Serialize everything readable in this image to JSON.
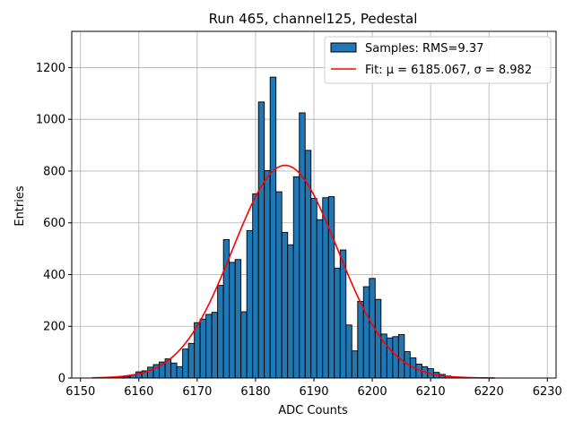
{
  "chart_data": {
    "type": "bar",
    "title": "Run 465, channel125, Pedestal",
    "xlabel": "ADC Counts",
    "ylabel": "Entries",
    "xlim": [
      6148.5,
      6231.5
    ],
    "ylim": [
      0,
      1340
    ],
    "xticks": [
      6150,
      6160,
      6170,
      6180,
      6190,
      6200,
      6210,
      6220,
      6230
    ],
    "yticks": [
      0,
      200,
      400,
      600,
      800,
      1000,
      1200
    ],
    "grid": true,
    "legend_position": "top-right",
    "colors": {
      "bars": "#1f77b4",
      "bar_edge": "#000000",
      "fit": "#ff0000",
      "grid": "#b0b0b0"
    },
    "series": [
      {
        "name": "Samples: RMS=9.37",
        "type": "bar",
        "bin_width": 1,
        "bin_centers": [
          6155,
          6156,
          6157,
          6158,
          6159,
          6160,
          6161,
          6162,
          6163,
          6164,
          6165,
          6166,
          6167,
          6168,
          6169,
          6170,
          6171,
          6172,
          6173,
          6174,
          6175,
          6176,
          6177,
          6178,
          6179,
          6180,
          6181,
          6182,
          6183,
          6184,
          6185,
          6186,
          6187,
          6188,
          6189,
          6190,
          6191,
          6192,
          6193,
          6194,
          6195,
          6196,
          6197,
          6198,
          6199,
          6200,
          6201,
          6202,
          6203,
          6204,
          6205,
          6206,
          6207,
          6208,
          6209,
          6210,
          6211,
          6212,
          6213,
          6214
        ],
        "values": [
          1,
          2,
          4,
          6,
          12,
          24,
          28,
          42,
          52,
          62,
          74,
          58,
          44,
          112,
          134,
          214,
          228,
          246,
          254,
          358,
          535,
          447,
          458,
          256,
          570,
          712,
          1067,
          802,
          1163,
          720,
          563,
          515,
          778,
          1025,
          880,
          694,
          612,
          697,
          701,
          425,
          495,
          205,
          105,
          296,
          353,
          385,
          304,
          170,
          155,
          160,
          168,
          102,
          78,
          54,
          44,
          36,
          22,
          14,
          8,
          4
        ]
      },
      {
        "name": "Fit: μ = 6185.067, σ = 8.982",
        "type": "line",
        "mu": 6185.067,
        "sigma": 8.982,
        "amplitude": 822,
        "x_range": [
          6152,
          6221
        ]
      }
    ]
  }
}
